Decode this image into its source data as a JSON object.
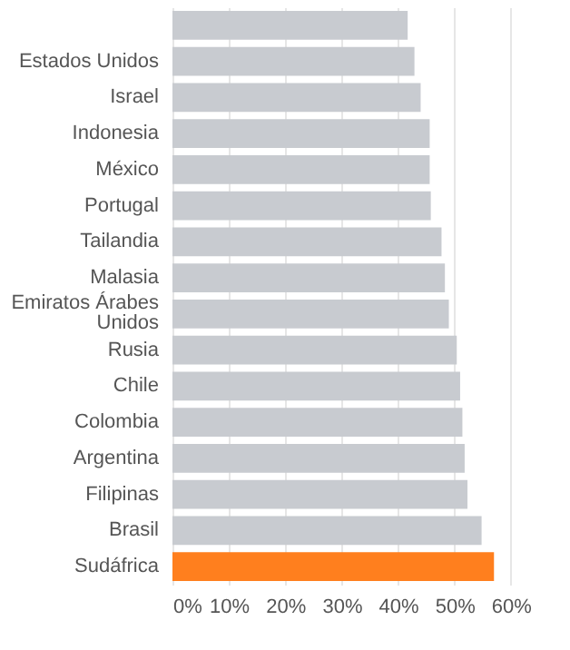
{
  "chart_data": {
    "type": "bar",
    "orientation": "horizontal",
    "categories": [
      null,
      "Estados Unidos",
      "Israel",
      "Indonesia",
      "México",
      "Portugal",
      "Tailandia",
      "Malasia",
      "Emiratos Árabes Unidos",
      "Rusia",
      "Chile",
      "Colombia",
      "Argentina",
      "Filipinas",
      "Brasil",
      "Sudáfrica"
    ],
    "values": [
      41.7,
      42.9,
      44.0,
      45.6,
      45.6,
      45.8,
      47.7,
      48.3,
      49.0,
      50.4,
      51.0,
      51.4,
      51.8,
      52.3,
      54.8,
      57.0
    ],
    "colors": [
      "#c8cbd0",
      "#c8cbd0",
      "#c8cbd0",
      "#c8cbd0",
      "#c8cbd0",
      "#c8cbd0",
      "#c8cbd0",
      "#c8cbd0",
      "#c8cbd0",
      "#c8cbd0",
      "#c8cbd0",
      "#c8cbd0",
      "#c8cbd0",
      "#c8cbd0",
      "#c8cbd0",
      "#ff7f1e"
    ],
    "xlim": [
      0,
      60.5
    ],
    "xticks": [
      {
        "value": 0,
        "label": "0%"
      },
      {
        "value": 10,
        "label": "10%"
      },
      {
        "value": 20,
        "label": "20%"
      },
      {
        "value": 30,
        "label": "30%"
      },
      {
        "value": 40,
        "label": "40%"
      },
      {
        "value": 50,
        "label": "50%"
      },
      {
        "value": 60,
        "label": "60%"
      }
    ],
    "grid": "x"
  }
}
